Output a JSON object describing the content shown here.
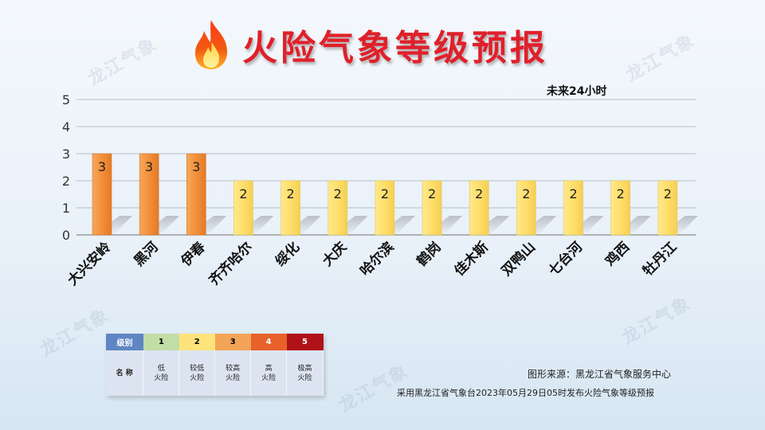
{
  "header": {
    "title": "火险气象等级预报",
    "subtitle": "未来24小时"
  },
  "watermark": "龙江气象",
  "chart_data": {
    "type": "bar",
    "title": "火险气象等级预报",
    "subtitle": "未来24小时",
    "categories": [
      "大兴安岭",
      "黑河",
      "伊春",
      "齐齐哈尔",
      "绥化",
      "大庆",
      "哈尔滨",
      "鹤岗",
      "佳木斯",
      "双鸭山",
      "七台河",
      "鸡西",
      "牡丹江"
    ],
    "values": [
      3,
      3,
      3,
      2,
      2,
      2,
      2,
      2,
      2,
      2,
      2,
      2,
      2
    ],
    "y_ticks": [
      "0",
      "1",
      "2",
      "3",
      "4",
      "5"
    ],
    "ylim": [
      0,
      5
    ],
    "grid": true,
    "level_colors": {
      "2": "#ffe27a",
      "3": "#f59a45"
    }
  },
  "legend": {
    "header_label": "级别",
    "name_label": "名 称",
    "levels": [
      {
        "level": "1",
        "name_line1": "低",
        "name_line2": "火险",
        "color": "#c2dda6"
      },
      {
        "level": "2",
        "name_line1": "较低",
        "name_line2": "火险",
        "color": "#fde37b"
      },
      {
        "level": "3",
        "name_line1": "较高",
        "name_line2": "火险",
        "color": "#f3a457"
      },
      {
        "level": "4",
        "name_line1": "高",
        "name_line2": "火险",
        "color": "#e8602a"
      },
      {
        "level": "5",
        "name_line1": "极高",
        "name_line2": "火险",
        "color": "#b1121a"
      }
    ],
    "header_color": "#5f85c3"
  },
  "footer": {
    "source": "图形来源：黑龙江省气象服务中心",
    "note": "采用黑龙江省气象台2023年05月29日05时发布火险气象等级预报"
  }
}
